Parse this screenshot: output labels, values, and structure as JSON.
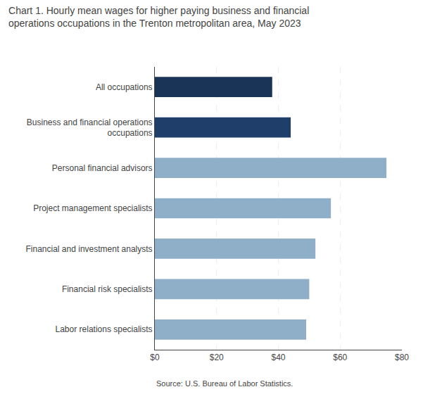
{
  "chart_data": {
    "type": "bar",
    "orientation": "horizontal",
    "title": "Chart 1. Hourly mean wages for higher paying business and financial\noperations occupations in the Trenton metropolitan area, May 2023",
    "annotations": [
      "Source: U.S. Bureau of Labor Statistics."
    ],
    "categories": [
      "Labor relations specialists",
      "Financial risk specialists",
      "Financial and investment analysts",
      "Project management specialists",
      "Personal financial advisors",
      "Business and financial operations\noccupations",
      "All occupations"
    ],
    "values": [
      49.0,
      50.0,
      52.0,
      57.0,
      75.0,
      44.0,
      38.0
    ],
    "colors": [
      "#8faec8",
      "#8faec8",
      "#8faec8",
      "#8faec8",
      "#8faec8",
      "#1f3f6a",
      "#1a3458"
    ],
    "xlim": [
      0,
      80
    ],
    "xticks": [
      {
        "value": 0,
        "label": "$0"
      },
      {
        "value": 20,
        "label": "$20"
      },
      {
        "value": 40,
        "label": "$40"
      },
      {
        "value": 60,
        "label": "$60"
      },
      {
        "value": 80,
        "label": "$80"
      }
    ],
    "grid": true
  }
}
